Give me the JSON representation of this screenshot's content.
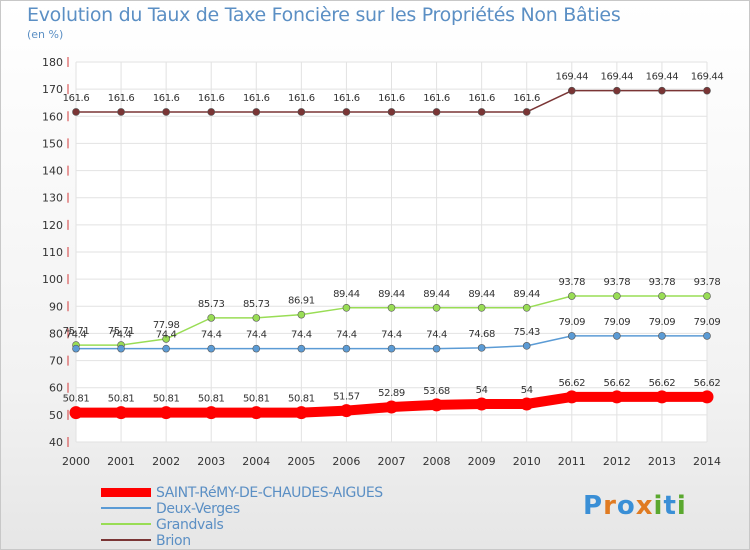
{
  "title": "Evolution du Taux de Taxe Foncière sur les Propriétés Non Bâties",
  "subtitle": "(en %)",
  "logo": {
    "text": "Proxiti",
    "letters": [
      {
        "ch": "P",
        "color": "#3a8fd6"
      },
      {
        "ch": "r",
        "color": "#e07b22"
      },
      {
        "ch": "o",
        "color": "#3a8fd6"
      },
      {
        "ch": "x",
        "color": "#e07b22"
      },
      {
        "ch": "i",
        "color": "#5aa82f"
      },
      {
        "ch": "t",
        "color": "#3a8fd6"
      },
      {
        "ch": "i",
        "color": "#5aa82f"
      }
    ]
  },
  "chart_data": {
    "type": "line",
    "x": [
      "2000",
      "2001",
      "2002",
      "2003",
      "2004",
      "2005",
      "2006",
      "2007",
      "2008",
      "2009",
      "2010",
      "2011",
      "2012",
      "2013",
      "2014"
    ],
    "ylim": [
      40,
      180
    ],
    "yticks": [
      40,
      50,
      60,
      70,
      80,
      90,
      100,
      110,
      120,
      130,
      140,
      150,
      160,
      170,
      180
    ],
    "grid": true,
    "legend_position": "bottom-left",
    "series": [
      {
        "name": "SAINT-RéMY-DE-CHAUDES-AIGUES",
        "color": "#ff0000",
        "width": 10,
        "marker_r": 6.5,
        "values": [
          50.81,
          50.81,
          50.81,
          50.81,
          50.81,
          50.81,
          51.57,
          52.89,
          53.68,
          54,
          54,
          56.62,
          56.62,
          56.62,
          56.62
        ],
        "labels": [
          "50.81",
          "50.81",
          "50.81",
          "50.81",
          "50.81",
          "50.81",
          "51.57",
          "52.89",
          "53.68",
          "54",
          "54",
          "56.62",
          "56.62",
          "56.62",
          "56.62"
        ]
      },
      {
        "name": "Deux-Verges",
        "color": "#5b9bd5",
        "width": 1.5,
        "marker_r": 3.5,
        "values": [
          74.4,
          74.4,
          74.4,
          74.4,
          74.4,
          74.4,
          74.4,
          74.4,
          74.4,
          74.68,
          75.43,
          79.09,
          79.09,
          79.09,
          79.09
        ],
        "labels": [
          "74.4",
          "74.4",
          "74.4",
          "74.4",
          "74.4",
          "74.4",
          "74.4",
          "74.4",
          "74.4",
          "74.68",
          "75.43",
          "79.09",
          "79.09",
          "79.09",
          "79.09"
        ]
      },
      {
        "name": "Grandvals",
        "color": "#99dd55",
        "width": 1.5,
        "marker_r": 3.5,
        "values": [
          75.71,
          75.71,
          77.98,
          85.73,
          85.73,
          86.91,
          89.44,
          89.44,
          89.44,
          89.44,
          89.44,
          93.78,
          93.78,
          93.78,
          93.78
        ],
        "labels": [
          "75.71",
          "75.71",
          "77.98",
          "85.73",
          "85.73",
          "86.91",
          "89.44",
          "89.44",
          "89.44",
          "89.44",
          "89.44",
          "93.78",
          "93.78",
          "93.78",
          "93.78"
        ]
      },
      {
        "name": "Brion",
        "color": "#7a3535",
        "width": 1.5,
        "marker_r": 3.5,
        "values": [
          161.6,
          161.6,
          161.6,
          161.6,
          161.6,
          161.6,
          161.6,
          161.6,
          161.6,
          161.6,
          161.6,
          169.44,
          169.44,
          169.44,
          169.44
        ],
        "labels": [
          "161.6",
          "161.6",
          "161.6",
          "161.6",
          "161.6",
          "161.6",
          "161.6",
          "161.6",
          "161.6",
          "161.6",
          "161.6",
          "169.44",
          "169.44",
          "169.44",
          "169.44"
        ]
      }
    ]
  }
}
